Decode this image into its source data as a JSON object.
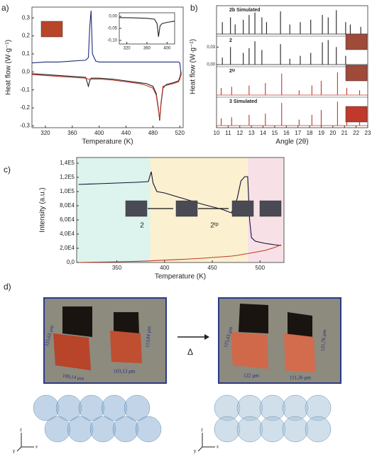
{
  "chart_data": [
    {
      "type": "line",
      "panel_label": "a)",
      "xlabel": "Temperature (K)",
      "ylabel": "Heat flow (W·g⁻¹)",
      "xlim": [
        300,
        525
      ],
      "xticks": [
        320,
        360,
        400,
        440,
        480,
        520
      ],
      "ylim": [
        -0.31,
        0.36
      ],
      "yticks": [
        {
          "value": -0.3,
          "label": "-0,3"
        },
        {
          "value": -0.2,
          "label": "-0,2"
        },
        {
          "value": -0.1,
          "label": "-0,1"
        },
        {
          "value": 0,
          "label": "0,0"
        },
        {
          "value": 0.1,
          "label": "0,1"
        },
        {
          "value": 0.2,
          "label": "0,2"
        },
        {
          "value": 0.3,
          "label": "0,3"
        }
      ],
      "x": [
        300,
        320,
        340,
        360,
        380,
        384,
        386,
        388,
        390,
        395,
        400,
        420,
        440,
        460,
        470,
        480,
        485,
        488,
        490,
        492,
        495,
        500,
        510,
        518,
        520,
        522
      ],
      "series": [
        {
          "color": "#1f2a7a",
          "values": [
            0.05,
            0.055,
            0.055,
            0.06,
            0.065,
            0.08,
            0.25,
            0.34,
            0.1,
            0.06,
            0.055,
            0.055,
            0.055,
            0.055,
            0.055,
            0.055,
            0.055,
            0.055,
            0.055,
            0.055,
            0.055,
            0.055,
            0.055,
            0.055,
            0.05,
            -0.02
          ]
        },
        {
          "color": "#222222",
          "values": [
            -0.01,
            -0.015,
            -0.02,
            -0.025,
            -0.03,
            -0.08,
            -0.05,
            -0.035,
            -0.035,
            -0.035,
            -0.035,
            -0.04,
            -0.05,
            -0.06,
            -0.065,
            -0.08,
            -0.12,
            -0.2,
            -0.27,
            -0.18,
            -0.09,
            -0.07,
            -0.06,
            -0.05,
            -0.03,
            0.0
          ]
        },
        {
          "color": "#c0392b",
          "values": [
            -0.015,
            -0.02,
            -0.025,
            -0.03,
            -0.035,
            -0.04,
            -0.04,
            -0.04,
            -0.04,
            -0.04,
            -0.04,
            -0.045,
            -0.055,
            -0.065,
            -0.075,
            -0.09,
            -0.13,
            -0.21,
            -0.26,
            -0.17,
            -0.08,
            -0.075,
            -0.065,
            -0.055,
            -0.04,
            -0.01
          ]
        }
      ]
    },
    {
      "type": "line",
      "xlim": [
        305,
        415
      ],
      "xticks": [
        320,
        360,
        400
      ],
      "ylim": [
        -0.115,
        0.015
      ],
      "yticks": [
        {
          "value": -0.1,
          "label": "-0,10"
        },
        {
          "value": -0.05,
          "label": "-0,05"
        },
        {
          "value": 0,
          "label": "0,00"
        }
      ],
      "x": [
        305,
        330,
        360,
        375,
        380,
        383,
        386,
        390,
        400,
        415
      ],
      "series": [
        {
          "color": "#222222",
          "values": [
            -0.005,
            -0.006,
            -0.008,
            -0.012,
            -0.03,
            -0.085,
            -0.04,
            -0.03,
            -0.025,
            -0.02
          ]
        }
      ]
    },
    {
      "type": "stick",
      "panel_label": "b)",
      "xlabel": "Angle (2θ)",
      "ylabel": "Heat flow (W·g⁻¹)",
      "xlim": [
        10,
        23
      ],
      "xticks": [
        10,
        11,
        12,
        13,
        14,
        15,
        16,
        17,
        18,
        19,
        20,
        21,
        22,
        23
      ],
      "series": [
        {
          "name": "2b Simulated",
          "color": "#222222",
          "ylim": [
            0,
            1.1
          ],
          "x": [
            10.5,
            11.2,
            11.6,
            12.3,
            12.8,
            13.3,
            13.9,
            14.3,
            15.5,
            16.3,
            17.2,
            18.1,
            19.1,
            19.6,
            20.3,
            21.1,
            21.5,
            22.4
          ],
          "values": [
            0.5,
            0.7,
            0.4,
            0.6,
            0.8,
            0.9,
            0.7,
            0.5,
            0.95,
            0.4,
            0.5,
            0.6,
            0.8,
            0.7,
            1.0,
            0.5,
            0.4,
            0.3
          ]
        },
        {
          "name": "2",
          "color": "#222222",
          "ylim": [
            0,
            0.045
          ],
          "yticks": [
            {
              "value": 0,
              "label": "0,00"
            },
            {
              "value": 0.03,
              "label": "0,03"
            }
          ],
          "x": [
            10.5,
            11.2,
            12.3,
            12.8,
            13.3,
            13.9,
            15.5,
            16.3,
            17.2,
            18.1,
            19.1,
            19.6,
            20.3,
            21.1
          ],
          "values": [
            0.012,
            0.03,
            0.02,
            0.028,
            0.04,
            0.025,
            0.035,
            0.01,
            0.015,
            0.02,
            0.038,
            0.042,
            0.03,
            0.015
          ]
        },
        {
          "name": "2ᵗᵖ",
          "color": "#c0392b",
          "ylim": [
            0,
            1.1
          ],
          "x": [
            10.4,
            11.3,
            12.8,
            14.2,
            15.6,
            17.1,
            18.2,
            19.0,
            20.4,
            21.2,
            22.3
          ],
          "values": [
            0.3,
            0.35,
            0.4,
            0.5,
            0.9,
            0.2,
            0.4,
            0.6,
            0.95,
            0.3,
            0.2
          ]
        },
        {
          "name": "3 Simulated",
          "color": "#c0392b",
          "ylim": [
            0,
            1.1
          ],
          "x": [
            10.4,
            11.3,
            12.8,
            14.2,
            15.6,
            17.1,
            18.2,
            19.0,
            20.4,
            21.2,
            22.3
          ],
          "values": [
            0.3,
            0.35,
            0.45,
            0.5,
            0.95,
            0.25,
            0.45,
            0.65,
            1.0,
            0.35,
            0.25
          ]
        }
      ]
    },
    {
      "type": "line",
      "panel_label": "c)",
      "xlabel": "Temperature (K)",
      "ylabel": "Intensity (a.u.)",
      "xlim": [
        308,
        525
      ],
      "xticks": [
        350,
        400,
        450,
        500
      ],
      "ylim": [
        0,
        148000
      ],
      "yticks": [
        {
          "value": 0,
          "label": "0,0"
        },
        {
          "value": 20000,
          "label": "2,0E4"
        },
        {
          "value": 40000,
          "label": "4,0E4"
        },
        {
          "value": 60000,
          "label": "6,0E4"
        },
        {
          "value": 80000,
          "label": "8,0E4"
        },
        {
          "value": 100000,
          "label": "1,0E5"
        },
        {
          "value": 120000,
          "label": "1,2E5"
        },
        {
          "value": 140000,
          "label": "1,4E5"
        }
      ],
      "bands": [
        {
          "from": 308,
          "to": 385,
          "color": "#dcf3ee"
        },
        {
          "from": 385,
          "to": 487,
          "color": "#fbf0cf"
        },
        {
          "from": 487,
          "to": 525,
          "color": "#f7e1e6"
        }
      ],
      "annotations": [
        "2",
        "2ᵗᵖ"
      ],
      "x": [
        310,
        330,
        350,
        370,
        383,
        386,
        388,
        392,
        400,
        420,
        440,
        460,
        470,
        476,
        480,
        484,
        487,
        489,
        491,
        495,
        505,
        515,
        522
      ],
      "series": [
        {
          "color": "#111133",
          "values": [
            110000,
            111000,
            112000,
            113000,
            114000,
            128000,
            112000,
            100000,
            98000,
            90000,
            82000,
            75000,
            70000,
            90000,
            115000,
            121000,
            121000,
            60000,
            35000,
            30000,
            27000,
            25000,
            24000
          ]
        },
        {
          "color": "#c0392b",
          "values": [
            0,
            500,
            1000,
            1600,
            2200,
            2400,
            2600,
            2800,
            3300,
            4500,
            6000,
            8000,
            9000,
            10000,
            11000,
            12000,
            12500,
            13000,
            13500,
            14500,
            17000,
            21000,
            25000
          ]
        }
      ]
    }
  ],
  "figure_d": {
    "panel_label": "d)",
    "symbol": "Δ",
    "before": [
      "115,63 µm",
      "109,14 µm",
      "103,13 µm",
      "113,84 µm"
    ],
    "after": [
      "115,43 µm",
      "122 µm",
      "111,36 µm",
      "121,76 µm"
    ],
    "axes": [
      "z",
      "x",
      "y"
    ]
  }
}
